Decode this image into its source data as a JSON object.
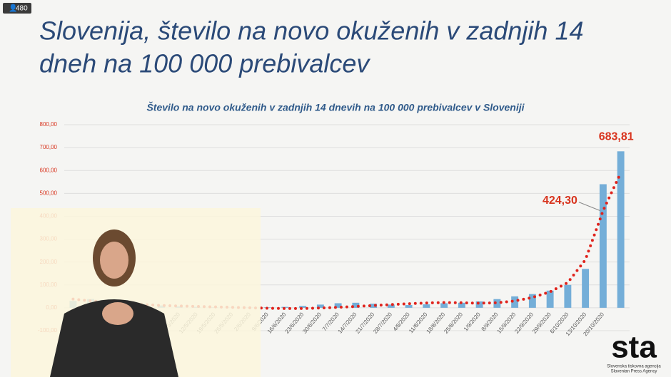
{
  "slide": {
    "title": [
      "Slovenija, število na novo okuženih v zadnjih 14",
      "dneh na 100 000 prebivalcev"
    ]
  },
  "viewer_count": "480",
  "logo": {
    "name": "sta",
    "lines": [
      "Slovenska tiskovna agencija",
      "Slovenian Press Agency"
    ]
  },
  "chart_data": {
    "type": "bar",
    "title": "Število na novo okuženih v zadnjih 14 dnevih na 100 000 prebivalcev v Sloveniji",
    "categories": [
      null,
      null,
      null,
      null,
      null,
      null,
      "5/5/2020",
      "12/5/2020",
      "19/5/2020",
      "26/5/2020",
      "2/6/2020",
      "9/6/2020",
      "16/6/2020",
      "23/6/2020",
      "30/6/2020",
      "7/7/2020",
      "14/7/2020",
      "21/7/2020",
      "28/7/2020",
      "4/8/2020",
      "11/8/2020",
      "18/8/2020",
      "25/8/2020",
      "1/9/2020",
      "8/9/2020",
      "15/9/2020",
      "22/9/2020",
      "29/9/2020",
      "6/10/2020",
      "13/10/2020",
      "20/10/2020",
      null
    ],
    "series": [
      {
        "kind": "bar",
        "color": "#74aed8",
        "values": [
          30,
          38,
          30,
          22,
          15,
          10,
          6,
          4,
          2,
          1,
          1,
          2,
          4,
          8,
          14,
          20,
          22,
          18,
          14,
          12,
          15,
          20,
          22,
          28,
          38,
          50,
          60,
          75,
          100,
          170,
          540,
          683.81
        ],
        "value_labels": [
          null,
          null,
          null,
          null,
          null,
          null,
          null,
          null,
          null,
          null,
          null,
          null,
          null,
          null,
          null,
          null,
          null,
          null,
          null,
          null,
          null,
          null,
          null,
          null,
          null,
          null,
          null,
          null,
          null,
          null,
          null,
          "683,81"
        ]
      },
      {
        "kind": "dotted-line",
        "color": "#e0231c",
        "values": [
          38,
          30,
          24,
          18,
          14,
          10,
          8,
          6,
          4,
          2,
          0,
          -2,
          -3,
          -3,
          -1,
          2,
          6,
          10,
          14,
          18,
          21,
          23,
          22,
          20,
          22,
          30,
          45,
          70,
          110,
          210,
          424.3,
          590
        ],
        "value_labels": [
          null,
          null,
          null,
          null,
          null,
          null,
          null,
          null,
          null,
          null,
          null,
          null,
          null,
          null,
          null,
          null,
          null,
          null,
          null,
          null,
          null,
          null,
          null,
          null,
          null,
          null,
          null,
          null,
          null,
          null,
          "424,30",
          null
        ]
      }
    ],
    "ylim": [
      -100,
      800
    ],
    "yticks": [
      {
        "value": -100,
        "label": "-100,00"
      },
      {
        "value": 0,
        "label": "0,00"
      },
      {
        "value": 100,
        "label": "100,00"
      },
      {
        "value": 200,
        "label": "200,00"
      },
      {
        "value": 300,
        "label": "300,00"
      },
      {
        "value": 400,
        "label": "400,00"
      },
      {
        "value": 500,
        "label": "500,00"
      },
      {
        "value": 600,
        "label": "600,00"
      },
      {
        "value": 700,
        "label": "700,00"
      },
      {
        "value": 800,
        "label": "800,00"
      }
    ],
    "grid": true
  }
}
